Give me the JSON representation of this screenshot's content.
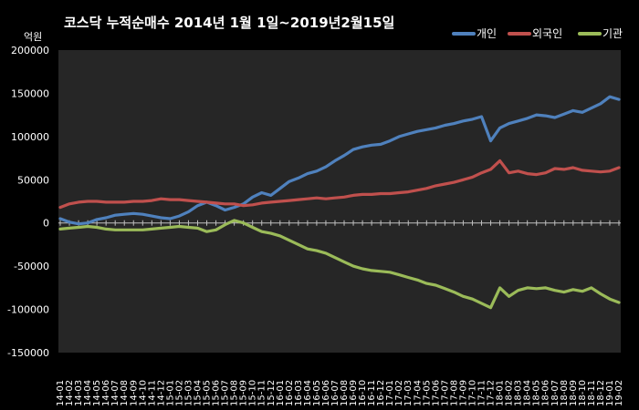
{
  "chart_data": {
    "type": "line",
    "title": "코스닥  누적순매수 2014년 1월 1일~2019년2월15일",
    "unit_label": "억원",
    "ylim": [
      -150000,
      200000
    ],
    "yticks": [
      "200000",
      "150000",
      "100000",
      "50000",
      "0",
      "-50000",
      "-100000",
      "-150000"
    ],
    "ytick_values": [
      200000,
      150000,
      100000,
      50000,
      0,
      -50000,
      -100000,
      -150000
    ],
    "legend_position": "top-right",
    "grid": false,
    "background": "#262626",
    "categories": [
      "14-01",
      "14-02",
      "14-03",
      "14-04",
      "14-05",
      "14-06",
      "14-07",
      "14-08",
      "14-09",
      "14-10",
      "14-11",
      "14-12",
      "15-01",
      "15-02",
      "15-03",
      "15-04",
      "15-05",
      "15-06",
      "15-07",
      "15-08",
      "15-09",
      "15-10",
      "15-11",
      "15-12",
      "16-01",
      "16-02",
      "16-03",
      "16-04",
      "16-05",
      "16-06",
      "16-07",
      "16-08",
      "16-09",
      "16-10",
      "16-11",
      "16-12",
      "17-01",
      "17-02",
      "17-03",
      "17-04",
      "17-05",
      "17-06",
      "17-07",
      "17-08",
      "17-09",
      "17-10",
      "17-11",
      "17-12",
      "18-01",
      "18-02",
      "18-03",
      "18-04",
      "18-05",
      "18-06",
      "18-07",
      "18-08",
      "18-09",
      "18-10",
      "18-11",
      "18-12",
      "19-01",
      "19-02"
    ],
    "series": [
      {
        "name": "개인",
        "color": "#4f81bd",
        "values": [
          5000,
          1000,
          -1000,
          0,
          4000,
          6000,
          9000,
          10000,
          11000,
          10000,
          8000,
          6000,
          5000,
          8000,
          13000,
          20000,
          24000,
          20000,
          15000,
          18000,
          22000,
          30000,
          35000,
          32000,
          40000,
          48000,
          52000,
          57000,
          60000,
          65000,
          72000,
          78000,
          85000,
          88000,
          90000,
          91000,
          95000,
          100000,
          103000,
          106000,
          108000,
          110000,
          113000,
          115000,
          118000,
          120000,
          123000,
          95000,
          110000,
          115000,
          118000,
          121000,
          125000,
          124000,
          122000,
          126000,
          130000,
          128000,
          133000,
          138000,
          146000,
          143000
        ]
      },
      {
        "name": "외국인",
        "color": "#c0504d",
        "values": [
          18000,
          22000,
          24000,
          25000,
          25000,
          24000,
          24000,
          24000,
          25000,
          25000,
          26000,
          28000,
          27000,
          27000,
          26000,
          25000,
          24000,
          23000,
          22000,
          22000,
          20000,
          21000,
          23000,
          24000,
          25000,
          26000,
          27000,
          28000,
          29000,
          28000,
          29000,
          30000,
          32000,
          33000,
          33000,
          34000,
          34000,
          35000,
          36000,
          38000,
          40000,
          43000,
          45000,
          47000,
          50000,
          53000,
          58000,
          62000,
          72000,
          58000,
          60000,
          57000,
          56000,
          58000,
          63000,
          62000,
          64000,
          61000,
          60000,
          59000,
          60000,
          64000
        ]
      },
      {
        "name": "기관",
        "color": "#9bbb59",
        "values": [
          -7000,
          -6000,
          -5000,
          -4000,
          -5000,
          -7000,
          -8000,
          -8000,
          -8000,
          -8000,
          -7000,
          -6000,
          -5000,
          -4000,
          -5000,
          -6000,
          -10000,
          -8000,
          -2000,
          3000,
          0,
          -5000,
          -10000,
          -12000,
          -15000,
          -20000,
          -25000,
          -30000,
          -32000,
          -35000,
          -40000,
          -45000,
          -50000,
          -53000,
          -55000,
          -56000,
          -57000,
          -60000,
          -63000,
          -66000,
          -70000,
          -72000,
          -76000,
          -80000,
          -85000,
          -88000,
          -93000,
          -98000,
          -75000,
          -85000,
          -78000,
          -75000,
          -76000,
          -75000,
          -78000,
          -80000,
          -77000,
          -79000,
          -75000,
          -82000,
          -88000,
          -92000
        ]
      }
    ]
  }
}
